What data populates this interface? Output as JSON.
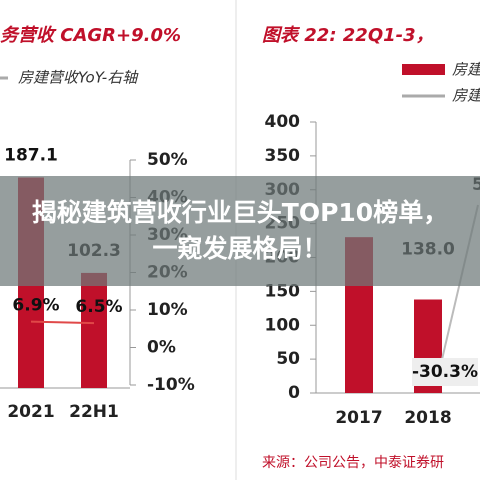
{
  "chart_data": [
    {
      "type": "bar",
      "title": "务营收 CAGR+9.0%",
      "legend": "房建营收YoY-右轴",
      "color": "#c0102a",
      "categories": [
        "2021",
        "22H1"
      ],
      "values": [
        187.1,
        102.3
      ],
      "ylim": [
        0,
        200
      ],
      "line": {
        "color": "#e04848",
        "values": [
          6.9,
          6.5
        ],
        "value_labels": [
          "6.9%",
          "6.5%"
        ],
        "axis": "y2"
      },
      "y2lim": [
        -10,
        50
      ],
      "y2ticks": [
        {
          "value": 50,
          "label": "50%"
        },
        {
          "value": 40,
          "label": "40%"
        },
        {
          "value": 30,
          "label": "30%"
        },
        {
          "value": 20,
          "label": "20%"
        },
        {
          "value": 10,
          "label": "10%"
        },
        {
          "value": 0,
          "label": "0%"
        },
        {
          "value": -10,
          "label": "-10%"
        }
      ]
    },
    {
      "type": "bar",
      "title": "图表 22:  22Q1-3，",
      "legend": [
        "房建",
        "房建"
      ],
      "color": "#c0102a",
      "categories": [
        "2017",
        "2018"
      ],
      "values": [
        230,
        138.0
      ],
      "value_labels": [
        null,
        "138.0"
      ],
      "ylim": [
        0,
        400
      ],
      "yticks": [
        0,
        50,
        100,
        150,
        200,
        250,
        300,
        350,
        400
      ],
      "annotations": [
        "-30.3%",
        "5"
      ],
      "source": "来源：公司公告，中泰证券研"
    }
  ],
  "banner": "揭秘建筑营收行业巨头TOP10榜单，一窥发展格局！"
}
